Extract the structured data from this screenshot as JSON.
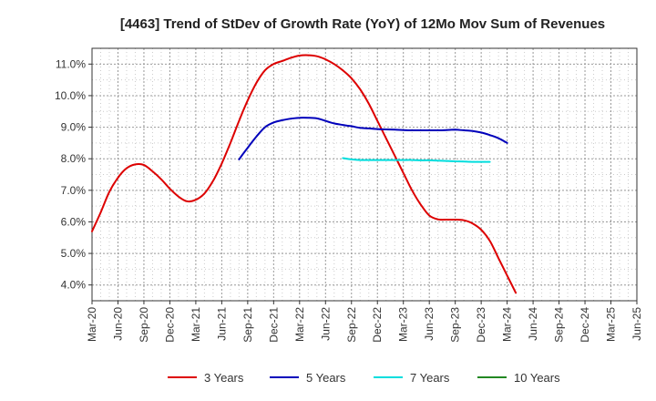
{
  "chart_data": {
    "type": "line",
    "title": "[4463]  Trend of StDev of Growth Rate (YoY) of 12Mo Mov Sum of Revenues",
    "xlabel": "",
    "ylabel": "",
    "ylim": [
      3.5,
      11.5
    ],
    "y_ticks": [
      4.0,
      5.0,
      6.0,
      7.0,
      8.0,
      9.0,
      10.0,
      11.0
    ],
    "y_tick_labels": [
      "4.0%",
      "5.0%",
      "6.0%",
      "7.0%",
      "8.0%",
      "9.0%",
      "10.0%",
      "11.0%"
    ],
    "x_tick_labels": [
      "Mar-20",
      "Jun-20",
      "Sep-20",
      "Dec-20",
      "Mar-21",
      "Jun-21",
      "Sep-21",
      "Dec-21",
      "Mar-22",
      "Jun-22",
      "Sep-22",
      "Dec-22",
      "Mar-23",
      "Jun-23",
      "Sep-23",
      "Dec-23",
      "Mar-24",
      "Jun-24",
      "Sep-24",
      "Dec-24",
      "Mar-25",
      "Jun-25"
    ],
    "grid": true,
    "legend_position": "bottom",
    "series": [
      {
        "name": "3 Years",
        "color": "#dd0000",
        "points": [
          [
            0,
            5.7
          ],
          [
            1,
            6.3
          ],
          [
            2,
            6.95
          ],
          [
            3,
            7.4
          ],
          [
            4,
            7.7
          ],
          [
            5,
            7.82
          ],
          [
            6,
            7.8
          ],
          [
            7,
            7.6
          ],
          [
            8,
            7.35
          ],
          [
            9,
            7.05
          ],
          [
            10,
            6.8
          ],
          [
            11,
            6.65
          ],
          [
            12,
            6.7
          ],
          [
            13,
            6.9
          ],
          [
            14,
            7.3
          ],
          [
            15,
            7.85
          ],
          [
            16,
            8.5
          ],
          [
            17,
            9.2
          ],
          [
            18,
            9.85
          ],
          [
            19,
            10.4
          ],
          [
            20,
            10.8
          ],
          [
            21,
            11.0
          ],
          [
            22,
            11.1
          ],
          [
            23,
            11.2
          ],
          [
            24,
            11.27
          ],
          [
            25,
            11.28
          ],
          [
            26,
            11.25
          ],
          [
            27,
            11.15
          ],
          [
            28,
            11.0
          ],
          [
            29,
            10.8
          ],
          [
            30,
            10.55
          ],
          [
            31,
            10.2
          ],
          [
            32,
            9.75
          ],
          [
            33,
            9.2
          ],
          [
            34,
            8.65
          ],
          [
            35,
            8.1
          ],
          [
            36,
            7.55
          ],
          [
            37,
            7.0
          ],
          [
            38,
            6.55
          ],
          [
            39,
            6.2
          ],
          [
            40,
            6.08
          ],
          [
            41,
            6.07
          ],
          [
            42,
            6.07
          ],
          [
            43,
            6.05
          ],
          [
            44,
            5.95
          ],
          [
            45,
            5.75
          ],
          [
            46,
            5.4
          ],
          [
            47,
            4.85
          ],
          [
            48,
            4.3
          ],
          [
            49,
            3.75
          ]
        ]
      },
      {
        "name": "5 Years",
        "color": "#0000bb",
        "points": [
          [
            17,
            7.98
          ],
          [
            18,
            8.35
          ],
          [
            19,
            8.7
          ],
          [
            20,
            9.0
          ],
          [
            21,
            9.15
          ],
          [
            22,
            9.22
          ],
          [
            23,
            9.27
          ],
          [
            24,
            9.3
          ],
          [
            25,
            9.3
          ],
          [
            26,
            9.28
          ],
          [
            27,
            9.2
          ],
          [
            28,
            9.12
          ],
          [
            29,
            9.07
          ],
          [
            30,
            9.03
          ],
          [
            31,
            8.98
          ],
          [
            32,
            8.96
          ],
          [
            33,
            8.94
          ],
          [
            34,
            8.93
          ],
          [
            35,
            8.92
          ],
          [
            36,
            8.91
          ],
          [
            37,
            8.9
          ],
          [
            38,
            8.9
          ],
          [
            39,
            8.9
          ],
          [
            40,
            8.9
          ],
          [
            41,
            8.91
          ],
          [
            42,
            8.92
          ],
          [
            43,
            8.9
          ],
          [
            44,
            8.88
          ],
          [
            45,
            8.83
          ],
          [
            46,
            8.75
          ],
          [
            47,
            8.65
          ],
          [
            48,
            8.5
          ]
        ]
      },
      {
        "name": "7 Years",
        "color": "#00dddd",
        "points": [
          [
            29,
            8.02
          ],
          [
            30,
            7.98
          ],
          [
            31,
            7.96
          ],
          [
            32,
            7.96
          ],
          [
            33,
            7.96
          ],
          [
            34,
            7.96
          ],
          [
            35,
            7.96
          ],
          [
            36,
            7.96
          ],
          [
            37,
            7.96
          ],
          [
            38,
            7.95
          ],
          [
            39,
            7.95
          ],
          [
            40,
            7.94
          ],
          [
            41,
            7.93
          ],
          [
            42,
            7.92
          ],
          [
            43,
            7.91
          ],
          [
            44,
            7.9
          ],
          [
            45,
            7.9
          ],
          [
            46,
            7.9
          ]
        ]
      },
      {
        "name": "10 Years",
        "color": "#228822",
        "points": []
      }
    ]
  }
}
